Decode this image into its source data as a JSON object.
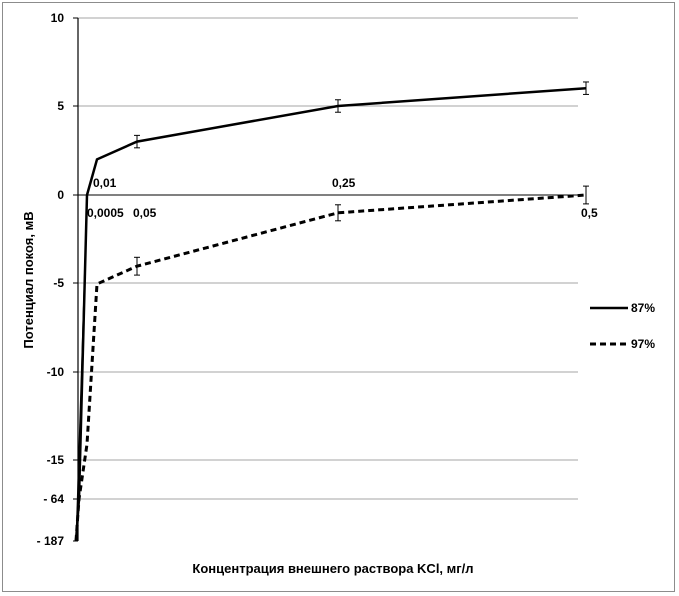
{
  "chart_data": {
    "type": "line",
    "xlabel": "Концентрация внешнего раствора KCl, мг/л",
    "ylabel": "Потенциал покоя, мВ",
    "y_ticks": [
      "10",
      "5",
      "0",
      "-5",
      "-10",
      "-15",
      "- 64",
      "- 187"
    ],
    "x_labels": [
      "0,01",
      "0,0005",
      "0,05",
      "0,25",
      "0,5"
    ],
    "grid": "horizontal",
    "legend_position": "right",
    "series": [
      {
        "name": "87%",
        "style": "solid",
        "color": "#000000",
        "points": [
          {
            "x": 0,
            "y": -187
          },
          {
            "x": 0.0005,
            "y": -64
          },
          {
            "x": 0.005,
            "y": 0
          },
          {
            "x": 0.01,
            "y": 2
          },
          {
            "x": 0.05,
            "y": 3,
            "err": 0.35
          },
          {
            "x": 0.25,
            "y": 5,
            "err": 0.35
          },
          {
            "x": 0.5,
            "y": 6,
            "err": 0.35
          }
        ]
      },
      {
        "name": "97%",
        "style": "dashed",
        "color": "#000000",
        "points": [
          {
            "x": 0,
            "y": -187
          },
          {
            "x": 0.0005,
            "y": -64
          },
          {
            "x": 0.005,
            "y": -14
          },
          {
            "x": 0.01,
            "y": -5
          },
          {
            "x": 0.05,
            "y": -4,
            "err": 0.5
          },
          {
            "x": 0.25,
            "y": -1,
            "err": 0.45
          },
          {
            "x": 0.5,
            "y": 0,
            "err": 0.5
          }
        ]
      }
    ]
  }
}
